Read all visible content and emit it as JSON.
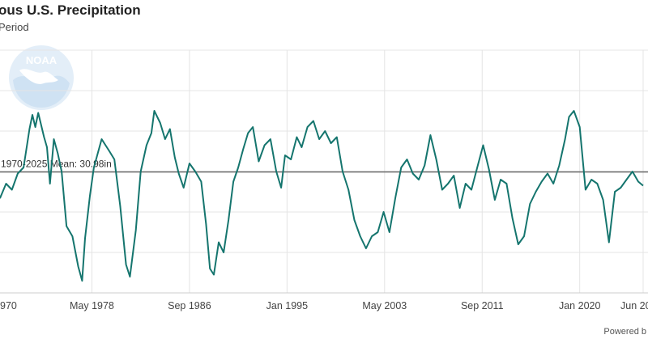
{
  "header": {
    "title": "ous U.S. Precipitation",
    "subtitle": "Period"
  },
  "footer": {
    "credit": "Powered b"
  },
  "logo": {
    "text": "NOAA",
    "icon": "noaa-logo"
  },
  "colors": {
    "series": "#15756e",
    "grid": "#e4e4e4",
    "mean_line": "#666666",
    "logo": "#e3eef8"
  },
  "chart_data": {
    "type": "line",
    "title": "ous U.S. Precipitation",
    "subtitle": "Period",
    "xlabel": "",
    "ylabel": "",
    "x_tick_labels": [
      "970",
      "May 1978",
      "Sep 1986",
      "Jan 1995",
      "May 2003",
      "Sep 2011",
      "Jan 2020",
      "Jun 20"
    ],
    "x_tick_dates": [
      "1970-01",
      "1978-05",
      "1986-09",
      "1995-01",
      "2003-05",
      "2011-09",
      "2020-01",
      "2025-06"
    ],
    "xlim": [
      "1970-01",
      "2025-06"
    ],
    "ylim": [
      25,
      37
    ],
    "grid": true,
    "reference_line": {
      "label": "1970-2025 Mean: 30.98in",
      "value": 30.98
    },
    "series": [
      {
        "values": [
          [
            "1970-01",
            30.4
          ],
          [
            "1970-07",
            29.7
          ],
          [
            "1971-01",
            30.4
          ],
          [
            "1971-07",
            30.1
          ],
          [
            "1972-01",
            30.9
          ],
          [
            "1972-07",
            31.2
          ],
          [
            "1973-01",
            33.1
          ],
          [
            "1973-04",
            33.8
          ],
          [
            "1973-07",
            33.2
          ],
          [
            "1973-10",
            33.9
          ],
          [
            "1974-04",
            32.7
          ],
          [
            "1974-07",
            32.2
          ],
          [
            "1974-10",
            30.4
          ],
          [
            "1975-02",
            32.6
          ],
          [
            "1975-06",
            31.9
          ],
          [
            "1975-10",
            31.0
          ],
          [
            "1976-03",
            28.3
          ],
          [
            "1976-09",
            27.8
          ],
          [
            "1977-03",
            26.3
          ],
          [
            "1977-07",
            25.6
          ],
          [
            "1977-10",
            27.7
          ],
          [
            "1978-03",
            29.8
          ],
          [
            "1978-07",
            31.2
          ],
          [
            "1978-11",
            31.9
          ],
          [
            "1979-03",
            32.6
          ],
          [
            "1979-07",
            32.3
          ],
          [
            "1979-11",
            32.0
          ],
          [
            "1980-04",
            31.6
          ],
          [
            "1980-10",
            29.3
          ],
          [
            "1981-04",
            26.4
          ],
          [
            "1981-08",
            25.8
          ],
          [
            "1982-02",
            28.1
          ],
          [
            "1982-07",
            31.0
          ],
          [
            "1983-01",
            32.3
          ],
          [
            "1983-06",
            32.9
          ],
          [
            "1983-09",
            34.0
          ],
          [
            "1984-03",
            33.4
          ],
          [
            "1984-08",
            32.6
          ],
          [
            "1985-01",
            33.1
          ],
          [
            "1985-06",
            31.7
          ],
          [
            "1985-10",
            30.9
          ],
          [
            "1986-03",
            30.2
          ],
          [
            "1986-09",
            31.4
          ],
          [
            "1987-03",
            31.0
          ],
          [
            "1987-09",
            30.5
          ],
          [
            "1988-02",
            28.4
          ],
          [
            "1988-06",
            26.2
          ],
          [
            "1988-10",
            25.9
          ],
          [
            "1989-03",
            27.5
          ],
          [
            "1989-08",
            27.0
          ],
          [
            "1990-01",
            28.6
          ],
          [
            "1990-06",
            30.5
          ],
          [
            "1990-11",
            31.2
          ],
          [
            "1991-04",
            32.1
          ],
          [
            "1991-09",
            32.9
          ],
          [
            "1992-02",
            33.2
          ],
          [
            "1992-08",
            31.5
          ],
          [
            "1993-02",
            32.3
          ],
          [
            "1993-08",
            32.6
          ],
          [
            "1994-02",
            31.0
          ],
          [
            "1994-07",
            30.2
          ],
          [
            "1994-11",
            31.8
          ],
          [
            "1995-05",
            31.6
          ],
          [
            "1995-11",
            32.7
          ],
          [
            "1996-04",
            32.2
          ],
          [
            "1996-10",
            33.2
          ],
          [
            "1997-04",
            33.5
          ],
          [
            "1997-10",
            32.6
          ],
          [
            "1998-04",
            33.0
          ],
          [
            "1998-10",
            32.4
          ],
          [
            "1999-04",
            32.7
          ],
          [
            "1999-10",
            31.0
          ],
          [
            "2000-04",
            30.1
          ],
          [
            "2000-10",
            28.6
          ],
          [
            "2001-04",
            27.8
          ],
          [
            "2001-10",
            27.2
          ],
          [
            "2002-04",
            27.8
          ],
          [
            "2002-10",
            28.0
          ],
          [
            "2003-04",
            29.0
          ],
          [
            "2003-10",
            28.0
          ],
          [
            "2004-04",
            29.7
          ],
          [
            "2004-10",
            31.2
          ],
          [
            "2005-04",
            31.6
          ],
          [
            "2005-10",
            30.9
          ],
          [
            "2006-04",
            30.6
          ],
          [
            "2006-10",
            31.3
          ],
          [
            "2007-04",
            32.8
          ],
          [
            "2007-10",
            31.6
          ],
          [
            "2008-04",
            30.1
          ],
          [
            "2008-10",
            30.4
          ],
          [
            "2009-04",
            30.8
          ],
          [
            "2009-10",
            29.2
          ],
          [
            "2010-04",
            30.4
          ],
          [
            "2010-10",
            30.1
          ],
          [
            "2011-04",
            31.2
          ],
          [
            "2011-10",
            32.3
          ],
          [
            "2012-04",
            31.1
          ],
          [
            "2012-10",
            29.6
          ],
          [
            "2013-04",
            30.6
          ],
          [
            "2013-10",
            30.4
          ],
          [
            "2014-04",
            28.7
          ],
          [
            "2014-10",
            27.4
          ],
          [
            "2015-04",
            27.8
          ],
          [
            "2015-10",
            29.4
          ],
          [
            "2016-04",
            30.0
          ],
          [
            "2016-10",
            30.5
          ],
          [
            "2017-04",
            30.9
          ],
          [
            "2017-10",
            30.4
          ],
          [
            "2018-04",
            31.3
          ],
          [
            "2018-10",
            32.6
          ],
          [
            "2019-02",
            33.7
          ],
          [
            "2019-07",
            34.0
          ],
          [
            "2020-01",
            33.2
          ],
          [
            "2020-07",
            30.1
          ],
          [
            "2021-01",
            30.6
          ],
          [
            "2021-07",
            30.4
          ],
          [
            "2022-01",
            29.6
          ],
          [
            "2022-07",
            27.5
          ],
          [
            "2023-01",
            30.0
          ],
          [
            "2023-07",
            30.2
          ],
          [
            "2024-01",
            30.6
          ],
          [
            "2024-07",
            31.0
          ],
          [
            "2025-01",
            30.5
          ],
          [
            "2025-06",
            30.3
          ]
        ]
      }
    ]
  }
}
